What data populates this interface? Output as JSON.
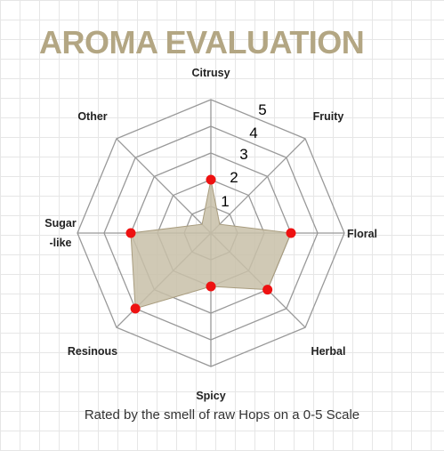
{
  "chart_data": {
    "type": "radar",
    "title": "AROMA EVALUATION",
    "subtitle": "Rated by the smell of raw Hops on a 0-5 Scale",
    "categories": [
      "Citrusy",
      "Fruity",
      "Floral",
      "Herbal",
      "Spicy",
      "Resinous",
      "Sugar -like",
      "Other"
    ],
    "category_lines": [
      [
        "Citrusy"
      ],
      [
        "Fruity"
      ],
      [
        "Floral"
      ],
      [
        "Herbal"
      ],
      [
        "Spicy"
      ],
      [
        "Resinous"
      ],
      [
        "Sugar",
        "-like"
      ],
      [
        "Other"
      ]
    ],
    "values": [
      2,
      0,
      3,
      3,
      2,
      4,
      3,
      0
    ],
    "scale": [
      0,
      5
    ],
    "ticks": [
      "1",
      "2",
      "3",
      "4",
      "5"
    ],
    "grid": true,
    "colors": {
      "fill": "#c8bfa8",
      "stroke": "#a89c7e",
      "points": "#ee1111",
      "grid": "#999999",
      "title": "#b3a683"
    }
  }
}
